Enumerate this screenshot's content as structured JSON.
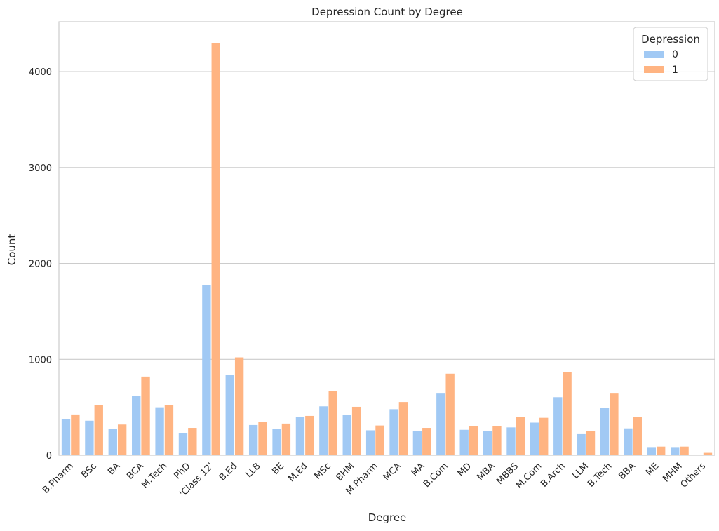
{
  "chart_data": {
    "type": "bar",
    "title": "Depression Count by Degree",
    "xlabel": "Degree",
    "ylabel": "Count",
    "ylim": [
      0,
      4520
    ],
    "yticks": [
      0,
      1000,
      2000,
      3000,
      4000
    ],
    "grid": "horizontal",
    "legend": {
      "title": "Depression",
      "placement": "top-right"
    },
    "categories": [
      "B.Pharm",
      "BSc",
      "BA",
      "BCA",
      "M.Tech",
      "PhD",
      "'Class 12'",
      "B.Ed",
      "LLB",
      "BE",
      "M.Ed",
      "MSc",
      "BHM",
      "M.Pharm",
      "MCA",
      "MA",
      "B.Com",
      "MD",
      "MBA",
      "MBBS",
      "M.Com",
      "B.Arch",
      "LLM",
      "B.Tech",
      "BBA",
      "ME",
      "MHM",
      "Others"
    ],
    "series": [
      {
        "name": "0",
        "color": "#a1c9f4",
        "values": [
          380,
          360,
          275,
          615,
          500,
          230,
          1775,
          840,
          315,
          275,
          400,
          510,
          420,
          260,
          480,
          255,
          650,
          265,
          250,
          290,
          340,
          605,
          220,
          495,
          280,
          85,
          85,
          0
        ]
      },
      {
        "name": "1",
        "color": "#ffb482",
        "values": [
          425,
          520,
          320,
          820,
          520,
          285,
          4300,
          1020,
          350,
          330,
          410,
          670,
          505,
          310,
          555,
          285,
          850,
          300,
          300,
          400,
          390,
          870,
          255,
          650,
          400,
          90,
          90,
          25
        ]
      }
    ]
  }
}
